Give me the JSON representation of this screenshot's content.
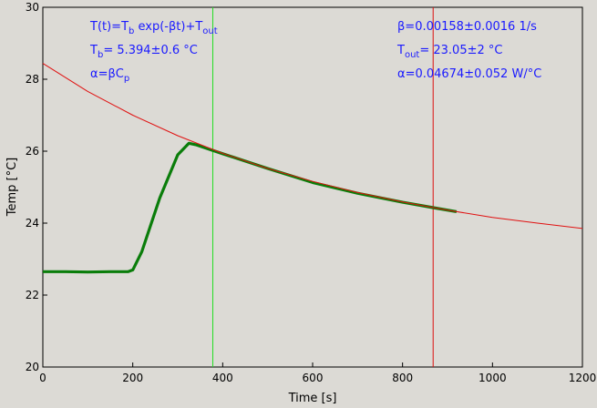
{
  "chart_data": {
    "type": "line",
    "xlabel": "Time [s]",
    "ylabel": "Temp [°C]",
    "xlim": [
      0,
      1200
    ],
    "ylim": [
      20,
      30
    ],
    "xticks": [
      0,
      200,
      400,
      600,
      800,
      1000,
      1200
    ],
    "yticks": [
      20,
      22,
      24,
      26,
      28,
      30
    ],
    "grid": false,
    "legend": "none",
    "colors": {
      "measured": "#0a7d0a",
      "fit": "#e01010",
      "cursor_green": "#22dd22",
      "cursor_red": "#dd1010",
      "annotation": "#1a1aff"
    },
    "vertical_lines": [
      {
        "x": 378,
        "color": "#22dd22"
      },
      {
        "x": 868,
        "color": "#dd1010"
      }
    ],
    "fit_model": {
      "Tb": 5.394,
      "beta": 0.00158,
      "Tout": 23.05
    },
    "series": [
      {
        "kind": "measured",
        "x": [
          0,
          50,
          100,
          150,
          190,
          200,
          220,
          260,
          300,
          325,
          340,
          378,
          400,
          500,
          600,
          700,
          800,
          868,
          920
        ],
        "y": [
          22.65,
          22.65,
          22.64,
          22.65,
          22.65,
          22.7,
          23.2,
          24.7,
          25.9,
          26.22,
          26.18,
          26.02,
          25.93,
          25.52,
          25.13,
          24.83,
          24.58,
          24.43,
          24.32
        ]
      },
      {
        "kind": "fit",
        "x": [
          0,
          100,
          200,
          300,
          400,
          500,
          600,
          700,
          800,
          900,
          1000,
          1100,
          1200
        ],
        "y": [
          28.44,
          27.66,
          27.0,
          26.43,
          25.94,
          25.52,
          25.16,
          24.85,
          24.59,
          24.36,
          24.16,
          24.0,
          23.85
        ]
      }
    ],
    "annotations": {
      "model": {
        "main": "T(t)=T",
        "sub1": "b",
        "mid": " exp(-βt)+T",
        "sub2": "out"
      },
      "tb": {
        "main": "T",
        "sub": "b",
        "rest": "= 5.394±0.6 °C"
      },
      "alpha_def": {
        "main": "α=βC",
        "sub": "p"
      },
      "beta": "β=0.00158±0.0016 1/s",
      "tout": {
        "main": "T",
        "sub": "out",
        "rest": "= 23.05±2 °C"
      },
      "alpha": "α=0.04674±0.052 W/°C"
    }
  }
}
